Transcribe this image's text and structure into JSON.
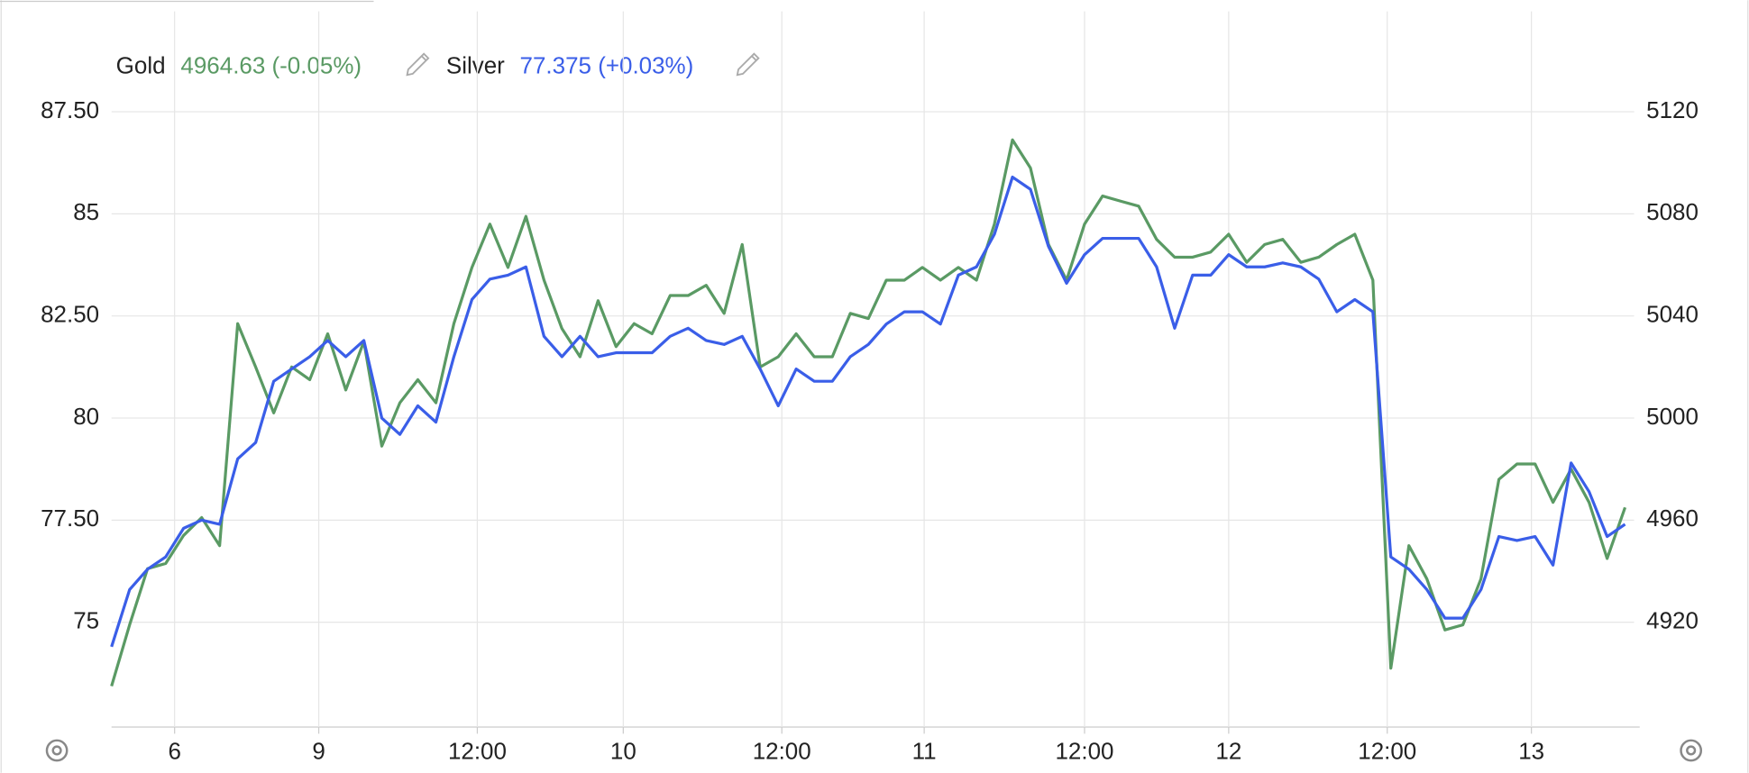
{
  "chart_data": {
    "type": "line",
    "legend": [
      {
        "name": "Gold",
        "value_label": "4964.63 (-0.05%)"
      },
      {
        "name": "Silver",
        "value_label": "77.375 (+0.03%)"
      }
    ],
    "xlim": [
      0,
      84.5
    ],
    "xticks": [
      {
        "value": 3.5,
        "label": "6"
      },
      {
        "value": 11.5,
        "label": "9"
      },
      {
        "value": 20.3,
        "label": "12:00"
      },
      {
        "value": 28.4,
        "label": "10"
      },
      {
        "value": 37.2,
        "label": "12:00"
      },
      {
        "value": 45.1,
        "label": "11"
      },
      {
        "value": 54.0,
        "label": "12:00"
      },
      {
        "value": 62.0,
        "label": "12"
      },
      {
        "value": 70.8,
        "label": "12:00"
      },
      {
        "value": 78.8,
        "label": "13"
      }
    ],
    "ylim": [
      72.5,
      90
    ],
    "yticks": [
      75,
      {
        "value": 77.5,
        "label": "77.50"
      },
      80,
      {
        "value": 82.5,
        "label": "82.50"
      },
      85,
      {
        "value": 87.5,
        "label": "87.50"
      }
    ],
    "y2lim": [
      4880,
      5160
    ],
    "y2ticks": [
      4920,
      4960,
      5000,
      5040,
      5080,
      5120
    ],
    "grid": true,
    "series": [
      {
        "name": "Gold",
        "color": "#5a9a64",
        "axis": "y2",
        "values": [
          4895,
          4919,
          4941,
          4943,
          4954,
          4961,
          4950,
          5037,
          5020,
          5002,
          5020,
          5015,
          5033,
          5011,
          5030,
          4989,
          5006,
          5015,
          5006,
          5037,
          5059,
          5076,
          5059,
          5079,
          5054,
          5035,
          5024,
          5046,
          5028,
          5037,
          5033,
          5048,
          5048,
          5052,
          5041,
          5068,
          5020,
          5024,
          5033,
          5024,
          5024,
          5041,
          5039,
          5054,
          5054,
          5059,
          5054,
          5059,
          5054,
          5076,
          5109,
          5098,
          5068,
          5054,
          5076,
          5087,
          5085,
          5083,
          5070,
          5063,
          5063,
          5065,
          5072,
          5061,
          5068,
          5070,
          5061,
          5063,
          5068,
          5072,
          5054,
          4902,
          4950,
          4937,
          4917,
          4919,
          4937,
          4976,
          4982,
          4982,
          4967,
          4980,
          4967,
          4945,
          4965
        ]
      },
      {
        "name": "Silver",
        "color": "#3a5ee8",
        "values": [
          74.4,
          75.8,
          76.3,
          76.6,
          77.3,
          77.5,
          77.4,
          79.0,
          79.4,
          80.9,
          81.2,
          81.5,
          81.9,
          81.5,
          81.9,
          80.0,
          79.6,
          80.3,
          79.9,
          81.5,
          82.9,
          83.4,
          83.5,
          83.7,
          82.0,
          81.5,
          82.0,
          81.5,
          81.6,
          81.6,
          81.6,
          82.0,
          82.2,
          81.9,
          81.8,
          82.0,
          81.2,
          80.3,
          81.2,
          80.9,
          80.9,
          81.5,
          81.8,
          82.3,
          82.6,
          82.6,
          82.3,
          83.5,
          83.7,
          84.5,
          85.9,
          85.6,
          84.2,
          83.3,
          84.0,
          84.4,
          84.4,
          84.4,
          83.7,
          82.2,
          83.5,
          83.5,
          84.0,
          83.7,
          83.7,
          83.8,
          83.7,
          83.4,
          82.6,
          82.9,
          82.6,
          76.6,
          76.3,
          75.8,
          75.1,
          75.1,
          75.8,
          77.1,
          77.0,
          77.1,
          76.4,
          78.9,
          78.2,
          77.1,
          77.4
        ]
      }
    ]
  }
}
